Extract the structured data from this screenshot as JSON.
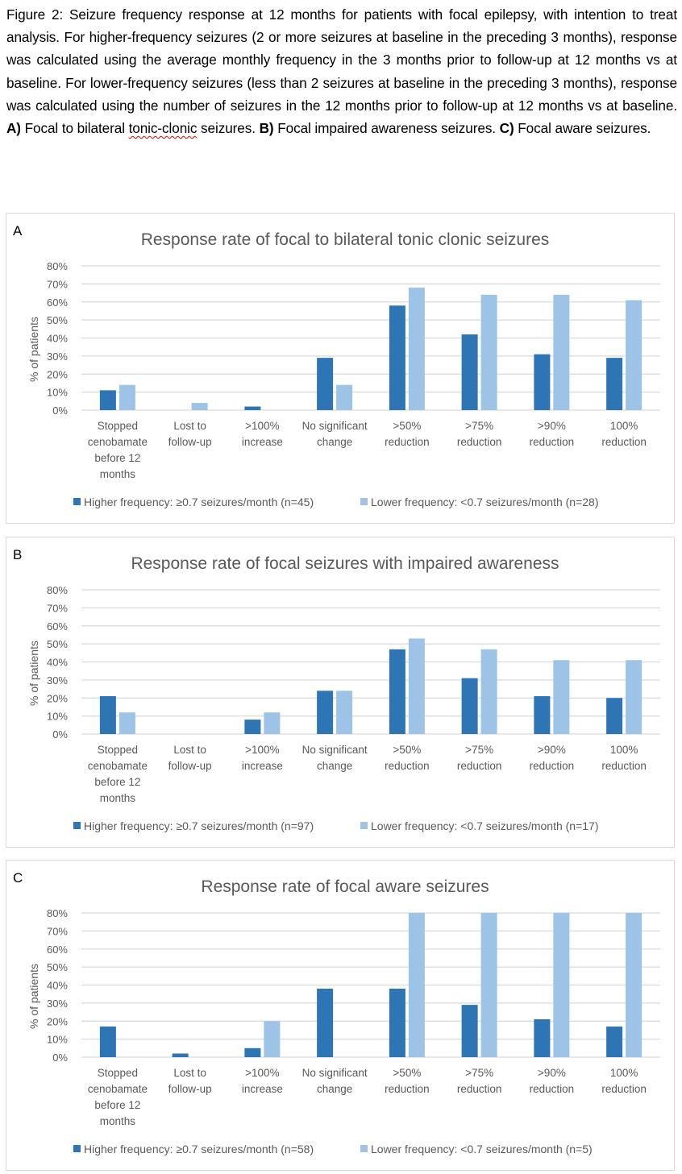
{
  "caption": {
    "prefix": "Figure 2: Seizure frequency response at 12 months for patients with focal epilepsy, with intention to treat analysis. For higher-frequency seizures (2 or more seizures at baseline in the preceding 3 months), response was calculated using the average monthly frequency in the 3 months prior to follow-up at 12 months vs at baseline. For lower-frequency seizures (less than 2 seizures at baseline in the preceding 3 months), response was calculated using the number of seizures in the 12 months prior to follow-up at 12 months vs at baseline. ",
    "a_label": "A)",
    "a_text": " Focal to bilateral ",
    "a_text2": "tonic-clonic",
    "a_text3": " seizures. ",
    "b_label": "B)",
    "b_text": " Focal impaired awareness seizures. ",
    "c_label": "C)",
    "c_text": " Focal aware seizures."
  },
  "colors": {
    "higher": "#2e75b6",
    "lower": "#9dc3e6",
    "grid": "#d9d9d9",
    "text": "#595959"
  },
  "chart_data": [
    {
      "panel": "A",
      "type": "bar",
      "title": "Response rate of focal to bilateral tonic clonic seizures",
      "xlabel": "",
      "ylabel": "% of patients",
      "ylim": [
        0,
        80
      ],
      "yticks": [
        "0%",
        "10%",
        "20%",
        "30%",
        "40%",
        "50%",
        "60%",
        "70%",
        "80%"
      ],
      "grid": true,
      "legend": "bottom",
      "categories": [
        [
          "Stopped",
          "cenobamate",
          "before 12",
          "months"
        ],
        [
          "Lost to",
          "follow-up"
        ],
        [
          ">100%",
          "increase"
        ],
        [
          "No significant",
          "change"
        ],
        [
          ">50%",
          "reduction"
        ],
        [
          ">75%",
          "reduction"
        ],
        [
          ">90%",
          "reduction"
        ],
        [
          "100%",
          "reduction"
        ]
      ],
      "series": [
        {
          "name": "Higher frequency: ≥0.7 seizures/month (n=45)",
          "values": [
            11,
            0,
            2,
            29,
            58,
            42,
            31,
            29
          ]
        },
        {
          "name": "Lower frequency: <0.7 seizures/month (n=28)",
          "values": [
            14,
            4,
            0,
            14,
            68,
            64,
            64,
            61
          ]
        }
      ]
    },
    {
      "panel": "B",
      "type": "bar",
      "title": "Response rate of focal seizures with impaired awareness",
      "xlabel": "",
      "ylabel": "% of patients",
      "ylim": [
        0,
        80
      ],
      "yticks": [
        "0%",
        "10%",
        "20%",
        "30%",
        "40%",
        "50%",
        "60%",
        "70%",
        "80%"
      ],
      "grid": true,
      "legend": "bottom",
      "categories": [
        [
          "Stopped",
          "cenobamate",
          "before 12",
          "months"
        ],
        [
          "Lost to",
          "follow-up"
        ],
        [
          ">100%",
          "increase"
        ],
        [
          "No significant",
          "change"
        ],
        [
          ">50%",
          "reduction"
        ],
        [
          ">75%",
          "reduction"
        ],
        [
          ">90%",
          "reduction"
        ],
        [
          "100%",
          "reduction"
        ]
      ],
      "series": [
        {
          "name": "Higher frequency: ≥0.7 seizures/month (n=97)",
          "values": [
            21,
            0,
            8,
            24,
            47,
            31,
            21,
            20
          ]
        },
        {
          "name": "Lower frequency: <0.7 seizures/month (n=17)",
          "values": [
            12,
            0,
            12,
            24,
            53,
            47,
            41,
            41
          ]
        }
      ]
    },
    {
      "panel": "C",
      "type": "bar",
      "title": "Response rate of focal aware seizures",
      "xlabel": "",
      "ylabel": "% of patients",
      "ylim": [
        0,
        80
      ],
      "yticks": [
        "0%",
        "10%",
        "20%",
        "30%",
        "40%",
        "50%",
        "60%",
        "70%",
        "80%"
      ],
      "grid": true,
      "legend": "bottom",
      "note": "Lower-frequency bars for >50%, >75%, >90% and 100% reduction are clipped at the 80% axis maximum",
      "categories": [
        [
          "Stopped",
          "cenobamate",
          "before 12",
          "months"
        ],
        [
          "Lost to",
          "follow-up"
        ],
        [
          ">100%",
          "increase"
        ],
        [
          "No significant",
          "change"
        ],
        [
          ">50%",
          "reduction"
        ],
        [
          ">75%",
          "reduction"
        ],
        [
          ">90%",
          "reduction"
        ],
        [
          "100%",
          "reduction"
        ]
      ],
      "series": [
        {
          "name": "Higher frequency: ≥0.7 seizures/month (n=58)",
          "values": [
            17,
            2,
            5,
            38,
            38,
            29,
            21,
            17
          ]
        },
        {
          "name": "Lower frequency: <0.7 seizures/month (n=5)",
          "values": [
            0,
            0,
            20,
            0,
            80,
            80,
            80,
            80
          ]
        }
      ]
    }
  ]
}
